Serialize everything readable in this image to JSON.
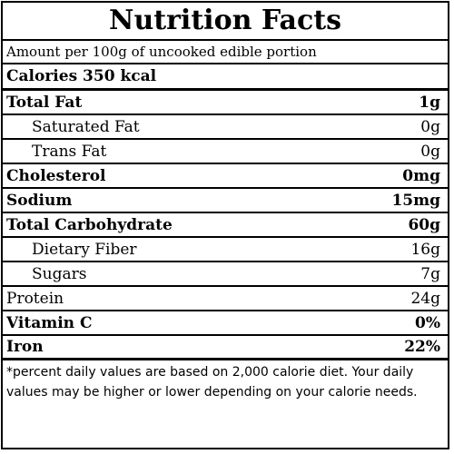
{
  "title": "Nutrition Facts",
  "amount_line": "Amount per 100g of uncooked edible portion",
  "calories": "Calories 350 kcal",
  "nutrients": [
    {
      "name": "Total Fat",
      "value": "1g",
      "bold": true,
      "indent": false
    },
    {
      "name": "Saturated Fat",
      "value": "0g",
      "bold": false,
      "indent": true
    },
    {
      "name": "Trans Fat",
      "value": "0g",
      "bold": false,
      "indent": true
    },
    {
      "name": "Cholesterol",
      "value": "0mg",
      "bold": true,
      "indent": false
    },
    {
      "name": "Sodium",
      "value": "15mg",
      "bold": true,
      "indent": false
    },
    {
      "name": "Total Carbohydrate",
      "value": "60g",
      "bold": true,
      "indent": false
    },
    {
      "name": "Dietary Fiber",
      "value": "16g",
      "bold": false,
      "indent": true
    },
    {
      "name": "Sugars",
      "value": "7g",
      "bold": false,
      "indent": true
    },
    {
      "name": "Protein",
      "value": "24g",
      "bold": false,
      "indent": false
    },
    {
      "name": "Vitamin C",
      "value": "0%",
      "bold": true,
      "indent": false
    },
    {
      "name": "Iron",
      "value": "22%",
      "bold": true,
      "indent": false
    }
  ],
  "footnote": "*percent daily values are based on 2,000 calorie diet. Your daily values may be higher or lower depending on your calorie needs."
}
